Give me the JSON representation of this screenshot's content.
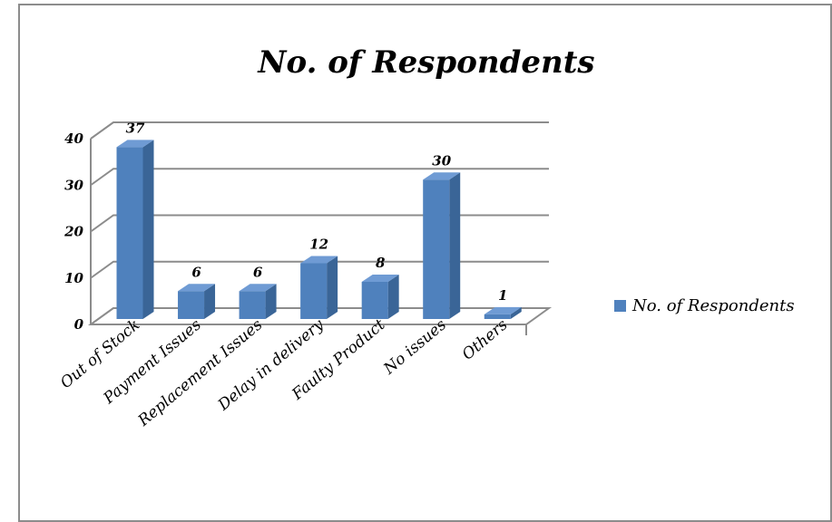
{
  "chart_data": {
    "type": "bar3d",
    "title": "No. of Respondents",
    "categories": [
      "Out of Stock",
      "Payment Issues",
      "Replacement Issues",
      "Delay in delivery",
      "Faulty Product",
      "No issues",
      "Others"
    ],
    "series": [
      {
        "name": "No. of Respondents",
        "color": "#4f81bd",
        "values": [
          37,
          6,
          6,
          12,
          8,
          30,
          1
        ]
      }
    ],
    "ylim": [
      0,
      40
    ],
    "yticks": [
      0,
      10,
      20,
      30,
      40
    ],
    "grid": true,
    "legend": "right"
  }
}
